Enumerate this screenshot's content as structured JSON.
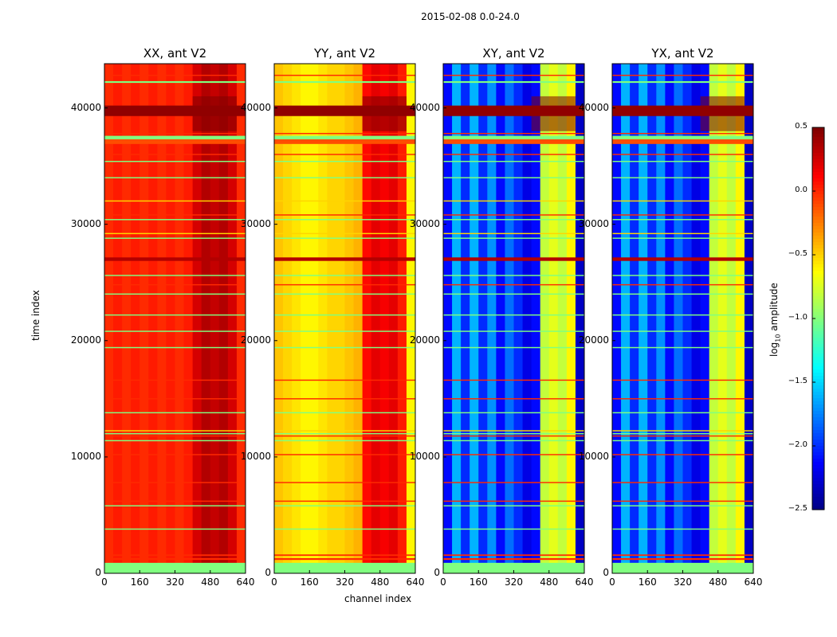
{
  "chart_data": {
    "type": "heatmap",
    "suptitle": "2015-02-08 0.0-24.0",
    "xlabel": "channel index",
    "ylabel": "time index",
    "xlim": [
      0,
      640
    ],
    "ylim": [
      0,
      43800
    ],
    "xticks": [
      "0",
      "160",
      "320",
      "480",
      "640"
    ],
    "yticks": [
      "0",
      "10000",
      "20000",
      "30000",
      "40000"
    ],
    "colorbar": {
      "label": "log10 amplitude",
      "label_main": "log",
      "label_sub": "10",
      "label_rest": " amplitude",
      "range": [
        -2.5,
        0.5
      ],
      "ticks": [
        "0.5",
        "0.0",
        "−0.5",
        "−1.0",
        "−1.5",
        "−2.0",
        "−2.5"
      ],
      "tick_values": [
        0.5,
        0.0,
        -0.5,
        -1.0,
        -1.5,
        -2.0,
        -2.5
      ],
      "colormap": "jet"
    },
    "panels": [
      {
        "title": "XX, ant V2",
        "column_profile": [
          0.0,
          0.05,
          0.0,
          0.05,
          0.0,
          0.05,
          0.0,
          0.05,
          0.0,
          0.05,
          0.25,
          0.35,
          0.3,
          0.35,
          0.25,
          0.0
        ],
        "top_block": 0.5
      },
      {
        "title": "YY, ant V2",
        "column_profile": [
          -0.45,
          -0.5,
          -0.55,
          -0.6,
          -0.6,
          -0.55,
          -0.5,
          -0.5,
          -0.45,
          -0.4,
          0.1,
          0.2,
          0.15,
          0.2,
          0.05,
          -0.6
        ],
        "top_block": 0.5
      },
      {
        "title": "XY, ant V2",
        "column_profile": [
          -2.1,
          -1.6,
          -2.0,
          -1.6,
          -2.0,
          -1.7,
          -2.1,
          -1.8,
          -2.0,
          -2.2,
          -2.1,
          -0.8,
          -0.7,
          -0.8,
          -0.6,
          -2.3
        ],
        "top_block": 0.5
      },
      {
        "title": "YX, ant V2",
        "column_profile": [
          -2.1,
          -1.6,
          -2.0,
          -1.6,
          -2.0,
          -1.7,
          -2.1,
          -1.8,
          -2.0,
          -2.2,
          -2.1,
          -0.8,
          -0.7,
          -0.8,
          -0.6,
          -2.3
        ],
        "top_block": 0.5
      }
    ],
    "row_bands": [
      {
        "t0": 0,
        "t1": 900,
        "value": -1.0
      },
      {
        "t0": 1150,
        "t1": 1300,
        "value": 0.0
      },
      {
        "t0": 1500,
        "t1": 1620,
        "value": 0.0
      },
      {
        "t0": 3750,
        "t1": 3850,
        "value": -1.0
      },
      {
        "t0": 5750,
        "t1": 5850,
        "value": -1.0
      },
      {
        "t0": 6150,
        "t1": 6250,
        "value": 0.0
      },
      {
        "t0": 7750,
        "t1": 7850,
        "value": 0.0
      },
      {
        "t0": 10150,
        "t1": 10250,
        "value": 0.0
      },
      {
        "t0": 11350,
        "t1": 11450,
        "value": -1.0
      },
      {
        "t0": 11750,
        "t1": 11850,
        "value": 0.0
      },
      {
        "t0": 11950,
        "t1": 12050,
        "value": -1.0
      },
      {
        "t0": 12200,
        "t1": 12300,
        "value": -0.5
      },
      {
        "t0": 13750,
        "t1": 13850,
        "value": -1.0
      },
      {
        "t0": 14950,
        "t1": 15050,
        "value": 0.0
      },
      {
        "t0": 16550,
        "t1": 16650,
        "value": 0.0
      },
      {
        "t0": 19350,
        "t1": 19450,
        "value": -1.0
      },
      {
        "t0": 20750,
        "t1": 20850,
        "value": -1.0
      },
      {
        "t0": 22150,
        "t1": 22250,
        "value": -1.0
      },
      {
        "t0": 23950,
        "t1": 24050,
        "value": -1.0
      },
      {
        "t0": 24750,
        "t1": 24850,
        "value": 0.0
      },
      {
        "t0": 25550,
        "t1": 25650,
        "value": -1.0
      },
      {
        "t0": 26850,
        "t1": 27150,
        "value": 0.35
      },
      {
        "t0": 28750,
        "t1": 28850,
        "value": -1.0
      },
      {
        "t0": 29150,
        "t1": 29250,
        "value": -0.5
      },
      {
        "t0": 30350,
        "t1": 30450,
        "value": -1.0
      },
      {
        "t0": 30750,
        "t1": 30850,
        "value": 0.0
      },
      {
        "t0": 31950,
        "t1": 32050,
        "value": -0.5
      },
      {
        "t0": 33950,
        "t1": 34050,
        "value": -1.0
      },
      {
        "t0": 35350,
        "t1": 35450,
        "value": -1.0
      },
      {
        "t0": 35950,
        "t1": 36050,
        "value": 0.0
      },
      {
        "t0": 36900,
        "t1": 37300,
        "value": -0.1
      },
      {
        "t0": 37300,
        "t1": 37600,
        "value": -1.0
      },
      {
        "t0": 37750,
        "t1": 37850,
        "value": 0.0
      },
      {
        "t0": 39300,
        "t1": 40200,
        "value": 0.45
      },
      {
        "t0": 42150,
        "t1": 42300,
        "value": -1.0
      },
      {
        "t0": 42750,
        "t1": 42850,
        "value": 0.0
      }
    ],
    "top_block_range": {
      "t0": 38000,
      "t1": 41000,
      "c0": 400,
      "c1": 600
    }
  }
}
